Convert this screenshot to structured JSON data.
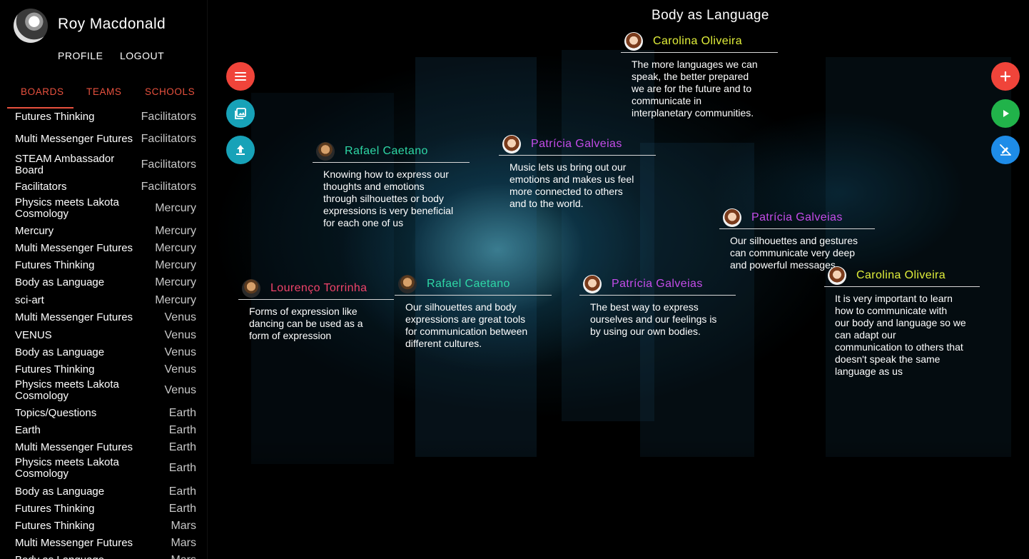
{
  "user": {
    "name": "Roy Macdonald",
    "profile_label": "PROFILE",
    "logout_label": "LOGOUT"
  },
  "tabs": [
    {
      "label": "BOARDS",
      "active": true
    },
    {
      "label": "TEAMS"
    },
    {
      "label": "SCHOOLS"
    }
  ],
  "boards": [
    {
      "name": "Futures Thinking",
      "team": "Facilitators"
    },
    {
      "name": "Multi Messenger Futures",
      "team": "Facilitators"
    },
    {
      "name": "STEAM Ambassador Board",
      "team": "Facilitators"
    },
    {
      "name": "Facilitators",
      "team": "Facilitators"
    },
    {
      "name": "Physics meets Lakota Cosmology",
      "team": "Mercury"
    },
    {
      "name": "Mercury",
      "team": "Mercury"
    },
    {
      "name": "Multi Messenger Futures",
      "team": "Mercury"
    },
    {
      "name": "Futures Thinking",
      "team": "Mercury"
    },
    {
      "name": "Body as Language",
      "team": "Mercury"
    },
    {
      "name": "sci-art",
      "team": "Mercury"
    },
    {
      "name": "Multi Messenger Futures",
      "team": "Venus"
    },
    {
      "name": "VENUS",
      "team": "Venus"
    },
    {
      "name": "Body as Language",
      "team": "Venus"
    },
    {
      "name": "Futures Thinking",
      "team": "Venus"
    },
    {
      "name": "Physics meets Lakota Cosmology",
      "team": "Venus"
    },
    {
      "name": "Topics/Questions",
      "team": "Earth"
    },
    {
      "name": "Earth",
      "team": "Earth"
    },
    {
      "name": "Multi Messenger Futures",
      "team": "Earth"
    },
    {
      "name": "Physics meets Lakota Cosmology",
      "team": "Earth"
    },
    {
      "name": "Body as Language",
      "team": "Earth"
    },
    {
      "name": "Futures Thinking",
      "team": "Earth"
    },
    {
      "name": "Futures Thinking",
      "team": "Mars"
    },
    {
      "name": "Multi Messenger Futures",
      "team": "Mars"
    },
    {
      "name": "Body as Language",
      "team": "Mars"
    }
  ],
  "board": {
    "title": "Body as Language"
  },
  "left_tools": [
    {
      "icon": "menu-icon",
      "color": "#f0443a"
    },
    {
      "icon": "image-icon",
      "color": "#17a2b8"
    },
    {
      "icon": "upload-icon",
      "color": "#17a2b8"
    }
  ],
  "right_tools": [
    {
      "icon": "plus-icon",
      "color": "#f0443a"
    },
    {
      "icon": "play-icon",
      "color": "#21b34a"
    },
    {
      "icon": "pen-off-icon",
      "color": "#1e8ce8"
    }
  ],
  "notes": [
    {
      "author": "Carolina Oliveira",
      "author_color": "#e2ef3a",
      "avatar": "female-avatar",
      "text": "The more languages we can\nspeak, the better prepared\nwe are for the future and to\ncommunicate in\ninterplanetary communities."
    },
    {
      "author": "Rafael Caetano",
      "author_color": "#2ed8a6",
      "avatar": "male-avatar",
      "text": "Knowing how to express our\nthoughts and emotions\nthrough silhouettes or body\nexpressions is very beneficial\nfor each one of us"
    },
    {
      "author": "Patrícia Galveias",
      "author_color": "#c54cea",
      "avatar": "female-avatar",
      "text": "Music lets us bring out our\nemotions and makes us feel\nmore connected to others\nand to the world."
    },
    {
      "author": "Patrícia Galveias",
      "author_color": "#c54cea",
      "avatar": "female-avatar",
      "text": "Our silhouettes and gestures\ncan communicate very deep\nand powerful messages."
    },
    {
      "author": "Lourenço Torrinha",
      "author_color": "#f0436a",
      "avatar": "male-avatar",
      "text": "Forms of expression like\ndancing can be used as a\nform of expression"
    },
    {
      "author": "Rafael Caetano",
      "author_color": "#2ed8a6",
      "avatar": "male-avatar",
      "text": "Our silhouettes and body\nexpressions are great tools\nfor communication between\ndifferent cultures."
    },
    {
      "author": "Patrícia Galveias",
      "author_color": "#c54cea",
      "avatar": "female-avatar",
      "text": "The best way to express\nourselves and our feelings is\nby using our own bodies."
    },
    {
      "author": "Carolina Oliveira",
      "author_color": "#e2ef3a",
      "avatar": "female-avatar",
      "text": "It is very important to learn\nhow to communicate with\nour body and language so we\ncan adapt our\ncommunication to others that\ndoesn't speak the same\nlanguage as us"
    }
  ]
}
